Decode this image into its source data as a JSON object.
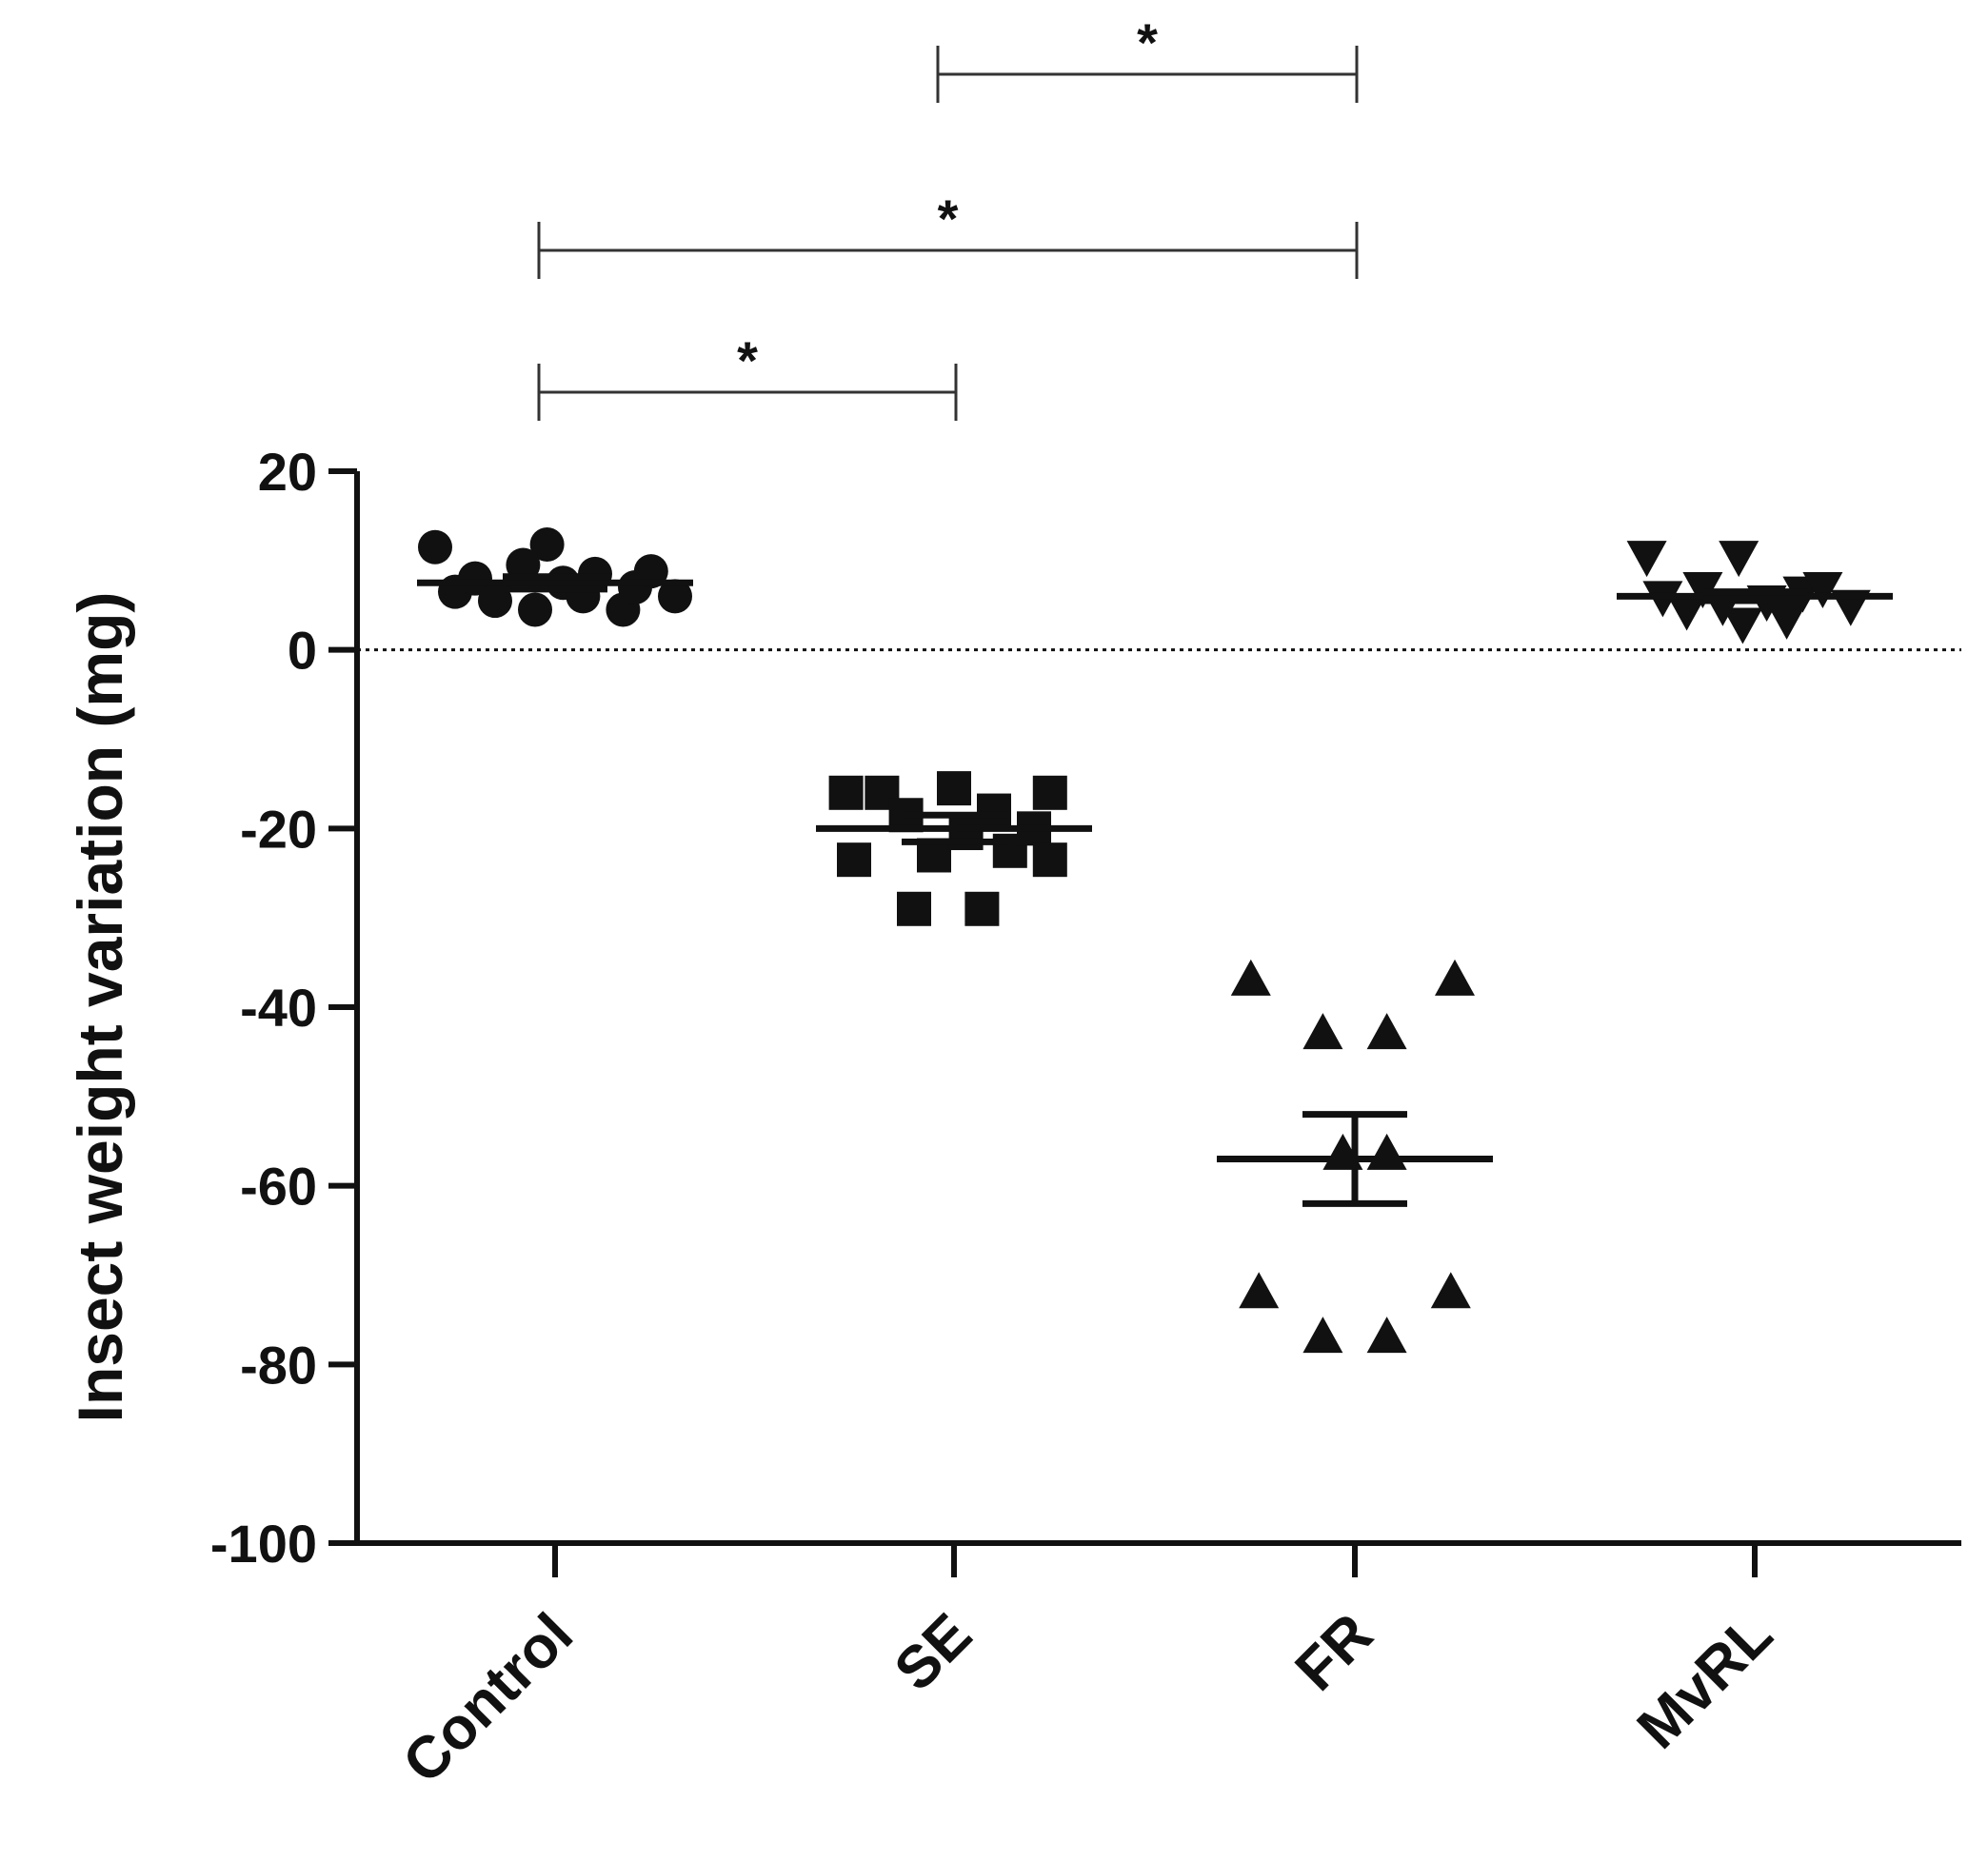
{
  "chart_data": {
    "type": "scatter",
    "title": "",
    "xlabel": "",
    "ylabel": "Insect weight variation (mg)",
    "ylim": [
      -100,
      20
    ],
    "yticks": [
      20,
      0,
      -20,
      -40,
      -60,
      -80,
      -100
    ],
    "ytick_labels": [
      "20",
      "0",
      "-20",
      "-40",
      "-60",
      "-80",
      "-100"
    ],
    "categories": [
      "Control",
      "SE",
      "FR",
      "MvRL"
    ],
    "reference_line": {
      "y": 0,
      "style": "dotted"
    },
    "series": [
      {
        "name": "Control",
        "marker": "circle",
        "points": [
          {
            "dx": -0.3,
            "y": 11.5
          },
          {
            "dx": -0.25,
            "y": 6.5
          },
          {
            "dx": -0.2,
            "y": 8.0
          },
          {
            "dx": -0.15,
            "y": 5.5
          },
          {
            "dx": -0.08,
            "y": 9.5
          },
          {
            "dx": -0.05,
            "y": 4.5
          },
          {
            "dx": -0.02,
            "y": 11.8
          },
          {
            "dx": 0.02,
            "y": 7.5
          },
          {
            "dx": 0.07,
            "y": 6.0
          },
          {
            "dx": 0.1,
            "y": 8.5
          },
          {
            "dx": 0.17,
            "y": 4.5
          },
          {
            "dx": 0.2,
            "y": 7.0
          },
          {
            "dx": 0.24,
            "y": 8.8
          },
          {
            "dx": 0.3,
            "y": 6.0
          }
        ],
        "mean": 7.5,
        "sem_low": 6.8,
        "sem_high": 8.2
      },
      {
        "name": "SE",
        "marker": "square",
        "points": [
          {
            "dx": -0.27,
            "y": -16.0
          },
          {
            "dx": -0.25,
            "y": -23.5
          },
          {
            "dx": -0.18,
            "y": -16.0
          },
          {
            "dx": -0.12,
            "y": -18.5
          },
          {
            "dx": -0.1,
            "y": -29.0
          },
          {
            "dx": -0.05,
            "y": -23.0
          },
          {
            "dx": 0.0,
            "y": -15.5
          },
          {
            "dx": 0.03,
            "y": -20.5
          },
          {
            "dx": 0.07,
            "y": -29.0
          },
          {
            "dx": 0.1,
            "y": -18.0
          },
          {
            "dx": 0.14,
            "y": -22.5
          },
          {
            "dx": 0.2,
            "y": -20.0
          },
          {
            "dx": 0.24,
            "y": -16.0
          },
          {
            "dx": 0.24,
            "y": -23.5
          }
        ],
        "mean": -20.0,
        "sem_low": -21.5,
        "sem_high": -18.5
      },
      {
        "name": "FR",
        "marker": "triangle-up",
        "points": [
          {
            "dx": -0.26,
            "y": -37.0
          },
          {
            "dx": 0.25,
            "y": -37.0
          },
          {
            "dx": -0.08,
            "y": -43.0
          },
          {
            "dx": 0.08,
            "y": -43.0
          },
          {
            "dx": -0.03,
            "y": -56.5
          },
          {
            "dx": 0.08,
            "y": -56.5
          },
          {
            "dx": -0.24,
            "y": -72.0
          },
          {
            "dx": 0.24,
            "y": -72.0
          },
          {
            "dx": -0.08,
            "y": -77.0
          },
          {
            "dx": 0.08,
            "y": -77.0
          }
        ],
        "mean": -57.0,
        "sem_low": -62.0,
        "sem_high": -52.0
      },
      {
        "name": "MvRL",
        "marker": "triangle-down",
        "points": [
          {
            "dx": -0.27,
            "y": 10.5
          },
          {
            "dx": -0.23,
            "y": 6.0
          },
          {
            "dx": -0.17,
            "y": 4.5
          },
          {
            "dx": -0.13,
            "y": 7.0
          },
          {
            "dx": -0.08,
            "y": 5.0
          },
          {
            "dx": -0.03,
            "y": 3.0
          },
          {
            "dx": -0.04,
            "y": 10.5
          },
          {
            "dx": 0.03,
            "y": 5.5
          },
          {
            "dx": 0.08,
            "y": 3.5
          },
          {
            "dx": 0.12,
            "y": 6.5
          },
          {
            "dx": 0.17,
            "y": 7.0
          },
          {
            "dx": 0.24,
            "y": 5.0
          }
        ],
        "mean": 6.0,
        "sem_low": 5.5,
        "sem_high": 6.5
      }
    ],
    "significance": [
      {
        "from": "SE",
        "to": "FR",
        "label": "*",
        "level": 3
      },
      {
        "from": "Control",
        "to": "FR",
        "label": "*",
        "level": 2
      },
      {
        "from": "Control",
        "to": "SE",
        "label": "*",
        "level": 1
      }
    ]
  }
}
